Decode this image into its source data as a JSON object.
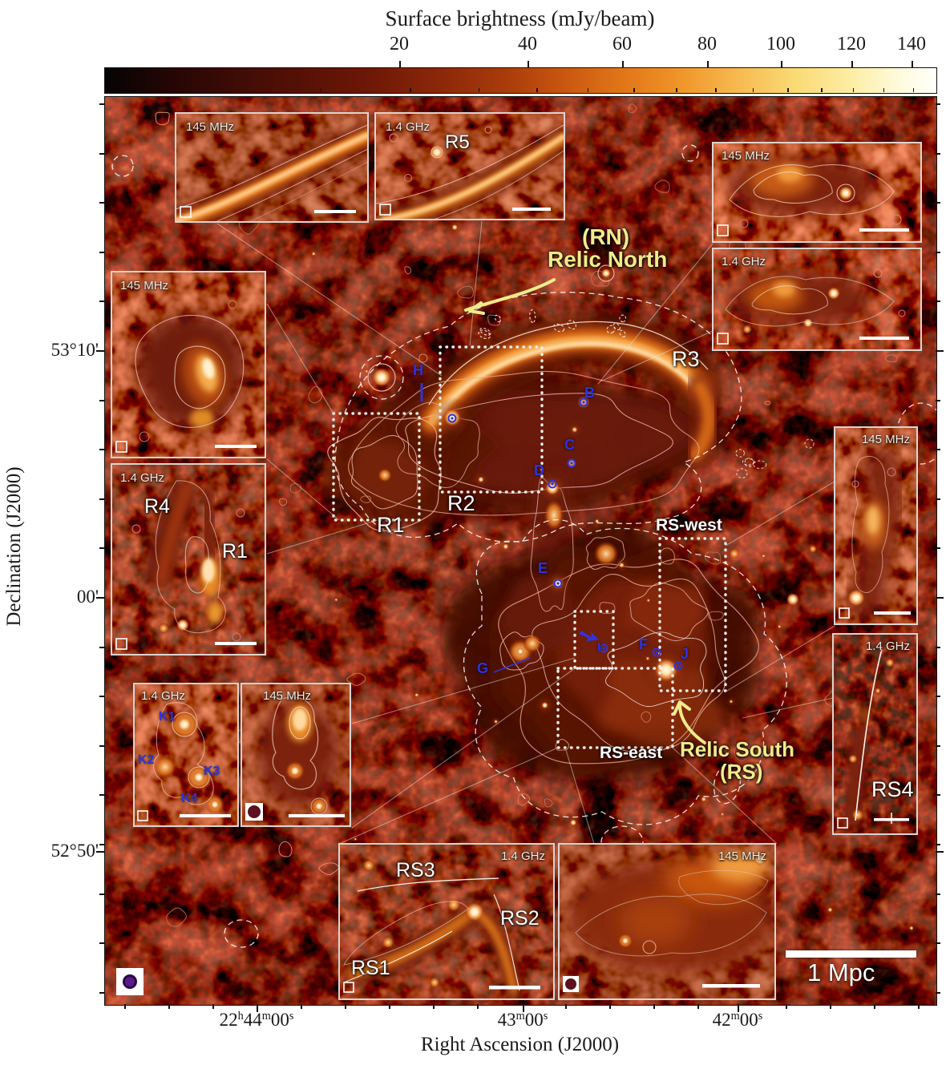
{
  "colorbar": {
    "title": "Surface brightness (mJy/beam)",
    "ticks": [
      "20",
      "40",
      "60",
      "80",
      "100",
      "120",
      "140"
    ]
  },
  "axes": {
    "x": {
      "label": "Right Ascension (J2000)",
      "ticks": [
        {
          "p1": "22",
          "s1": "h",
          "p2": "44",
          "s2": "m",
          "p3": "00",
          "s3": "s"
        },
        {
          "p1": "43",
          "s1": "m",
          "p2": "00",
          "s2": "s"
        },
        {
          "p1": "42",
          "s1": "m",
          "p2": "00",
          "s2": "s"
        }
      ]
    },
    "y": {
      "label": "Declination (J2000)",
      "ticks": [
        "53°10'",
        "00'",
        "52°50'"
      ]
    }
  },
  "annotations": {
    "relic_north_line1": "(RN)",
    "relic_north_line2": "Relic North",
    "relic_south_line1": "Relic South",
    "relic_south_line2": "(RS)",
    "scale_bar_label": "1 Mpc"
  },
  "regions": {
    "r1": "R1",
    "r2": "R2",
    "r3": "R3",
    "rs_west": "RS-west",
    "rs_east": "RS-east"
  },
  "sources": {
    "h": "H",
    "b": "B",
    "c": "C",
    "d": "D",
    "e": "E",
    "f": "F",
    "g": "G",
    "i": "I",
    "j": "J"
  },
  "insets": {
    "top_left": {
      "freq": "145 MHz"
    },
    "top_mid": {
      "freq": "1.4 GHz",
      "label": "R5"
    },
    "top_right_upper": {
      "freq": "145 MHz"
    },
    "top_right_lower": {
      "freq": "1.4 GHz"
    },
    "left_mid": {
      "freq": "145 MHz"
    },
    "left_lower": {
      "freq": "1.4 GHz",
      "label_r4": "R4",
      "label_r1": "R1"
    },
    "bottom_left_14": {
      "freq": "1.4 GHz",
      "k1": "K1",
      "k2": "K2",
      "k3": "K3",
      "k4": "K4"
    },
    "bottom_left_145": {
      "freq": "145 MHz"
    },
    "right_upper": {
      "freq": "145 MHz"
    },
    "right_lower": {
      "freq": "1.4 GHz",
      "label": "RS4"
    },
    "bottom_mid_left": {
      "freq": "1.4 GHz",
      "label_rs1": "RS1",
      "label_rs2": "RS2",
      "label_rs3": "RS3"
    },
    "bottom_mid_right": {
      "freq": "145 MHz"
    }
  },
  "colors": {
    "map_background": "#070202",
    "colormap_low": "#060404",
    "colormap_mid": "#e07517",
    "colormap_high": "#fffffb",
    "contour_pink": "#eeb09a",
    "annotation_yellow": "#f2eb8b",
    "annotation_blue": "#2e34da",
    "annotation_white": "#ffffff"
  },
  "chart_data": {
    "type": "heatmap",
    "description": "Radio continuum sky map of a galaxy cluster with double radio relics (Relic North RN, Relic South RS), shown with contours and zoom-in insets at 145 MHz and 1.4 GHz",
    "colorbar": {
      "label": "Surface brightness (mJy/beam)",
      "tick_values": [
        20,
        40,
        60,
        80,
        100,
        120,
        140
      ],
      "scale": "sqrt stretch",
      "range": [
        0,
        150
      ],
      "colormap": "black → dark red → orange → yellow → white"
    },
    "x_axis": {
      "label": "Right Ascension (J2000)",
      "tick_labels": [
        "22h44m00s",
        "43m00s",
        "42m00s"
      ]
    },
    "y_axis": {
      "label": "Declination (J2000)",
      "tick_labels": [
        "53°10'",
        "00'",
        "52°50'"
      ]
    },
    "features": [
      "(RN) Relic North",
      "Relic South (RS)",
      "R1",
      "R2",
      "R3",
      "R4",
      "R5",
      "RS-west",
      "RS-east",
      "RS1",
      "RS2",
      "RS3",
      "RS4",
      "compact sources H, B, C, D, E, F, G, I, J",
      "sources K1–K4"
    ],
    "insets": [
      {
        "position": "top-left",
        "freq": "145 MHz",
        "shows": "R5 relic edge"
      },
      {
        "position": "top-middle",
        "freq": "1.4 GHz",
        "shows": "R5"
      },
      {
        "position": "top-right-upper",
        "freq": "145 MHz",
        "shows": "R3 diffuse emission"
      },
      {
        "position": "top-right-lower",
        "freq": "1.4 GHz",
        "shows": "R3 diffuse emission"
      },
      {
        "position": "left-middle",
        "freq": "145 MHz",
        "shows": "R1 region"
      },
      {
        "position": "left-lower",
        "freq": "1.4 GHz",
        "shows": "R4 and R1"
      },
      {
        "position": "bottom-left-left",
        "freq": "1.4 GHz",
        "shows": "K1-K4 sources"
      },
      {
        "position": "bottom-left-right",
        "freq": "145 MHz",
        "shows": "K sources blended"
      },
      {
        "position": "right-upper",
        "freq": "145 MHz",
        "shows": "RS-west region"
      },
      {
        "position": "right-lower",
        "freq": "1.4 GHz",
        "shows": "RS4 filament"
      },
      {
        "position": "bottom-middle-left",
        "freq": "1.4 GHz",
        "shows": "RS1, RS2, RS3 filaments"
      },
      {
        "position": "bottom-middle-right",
        "freq": "145 MHz",
        "shows": "Relic South diffuse emission"
      }
    ],
    "scale_bar": "1 Mpc"
  }
}
